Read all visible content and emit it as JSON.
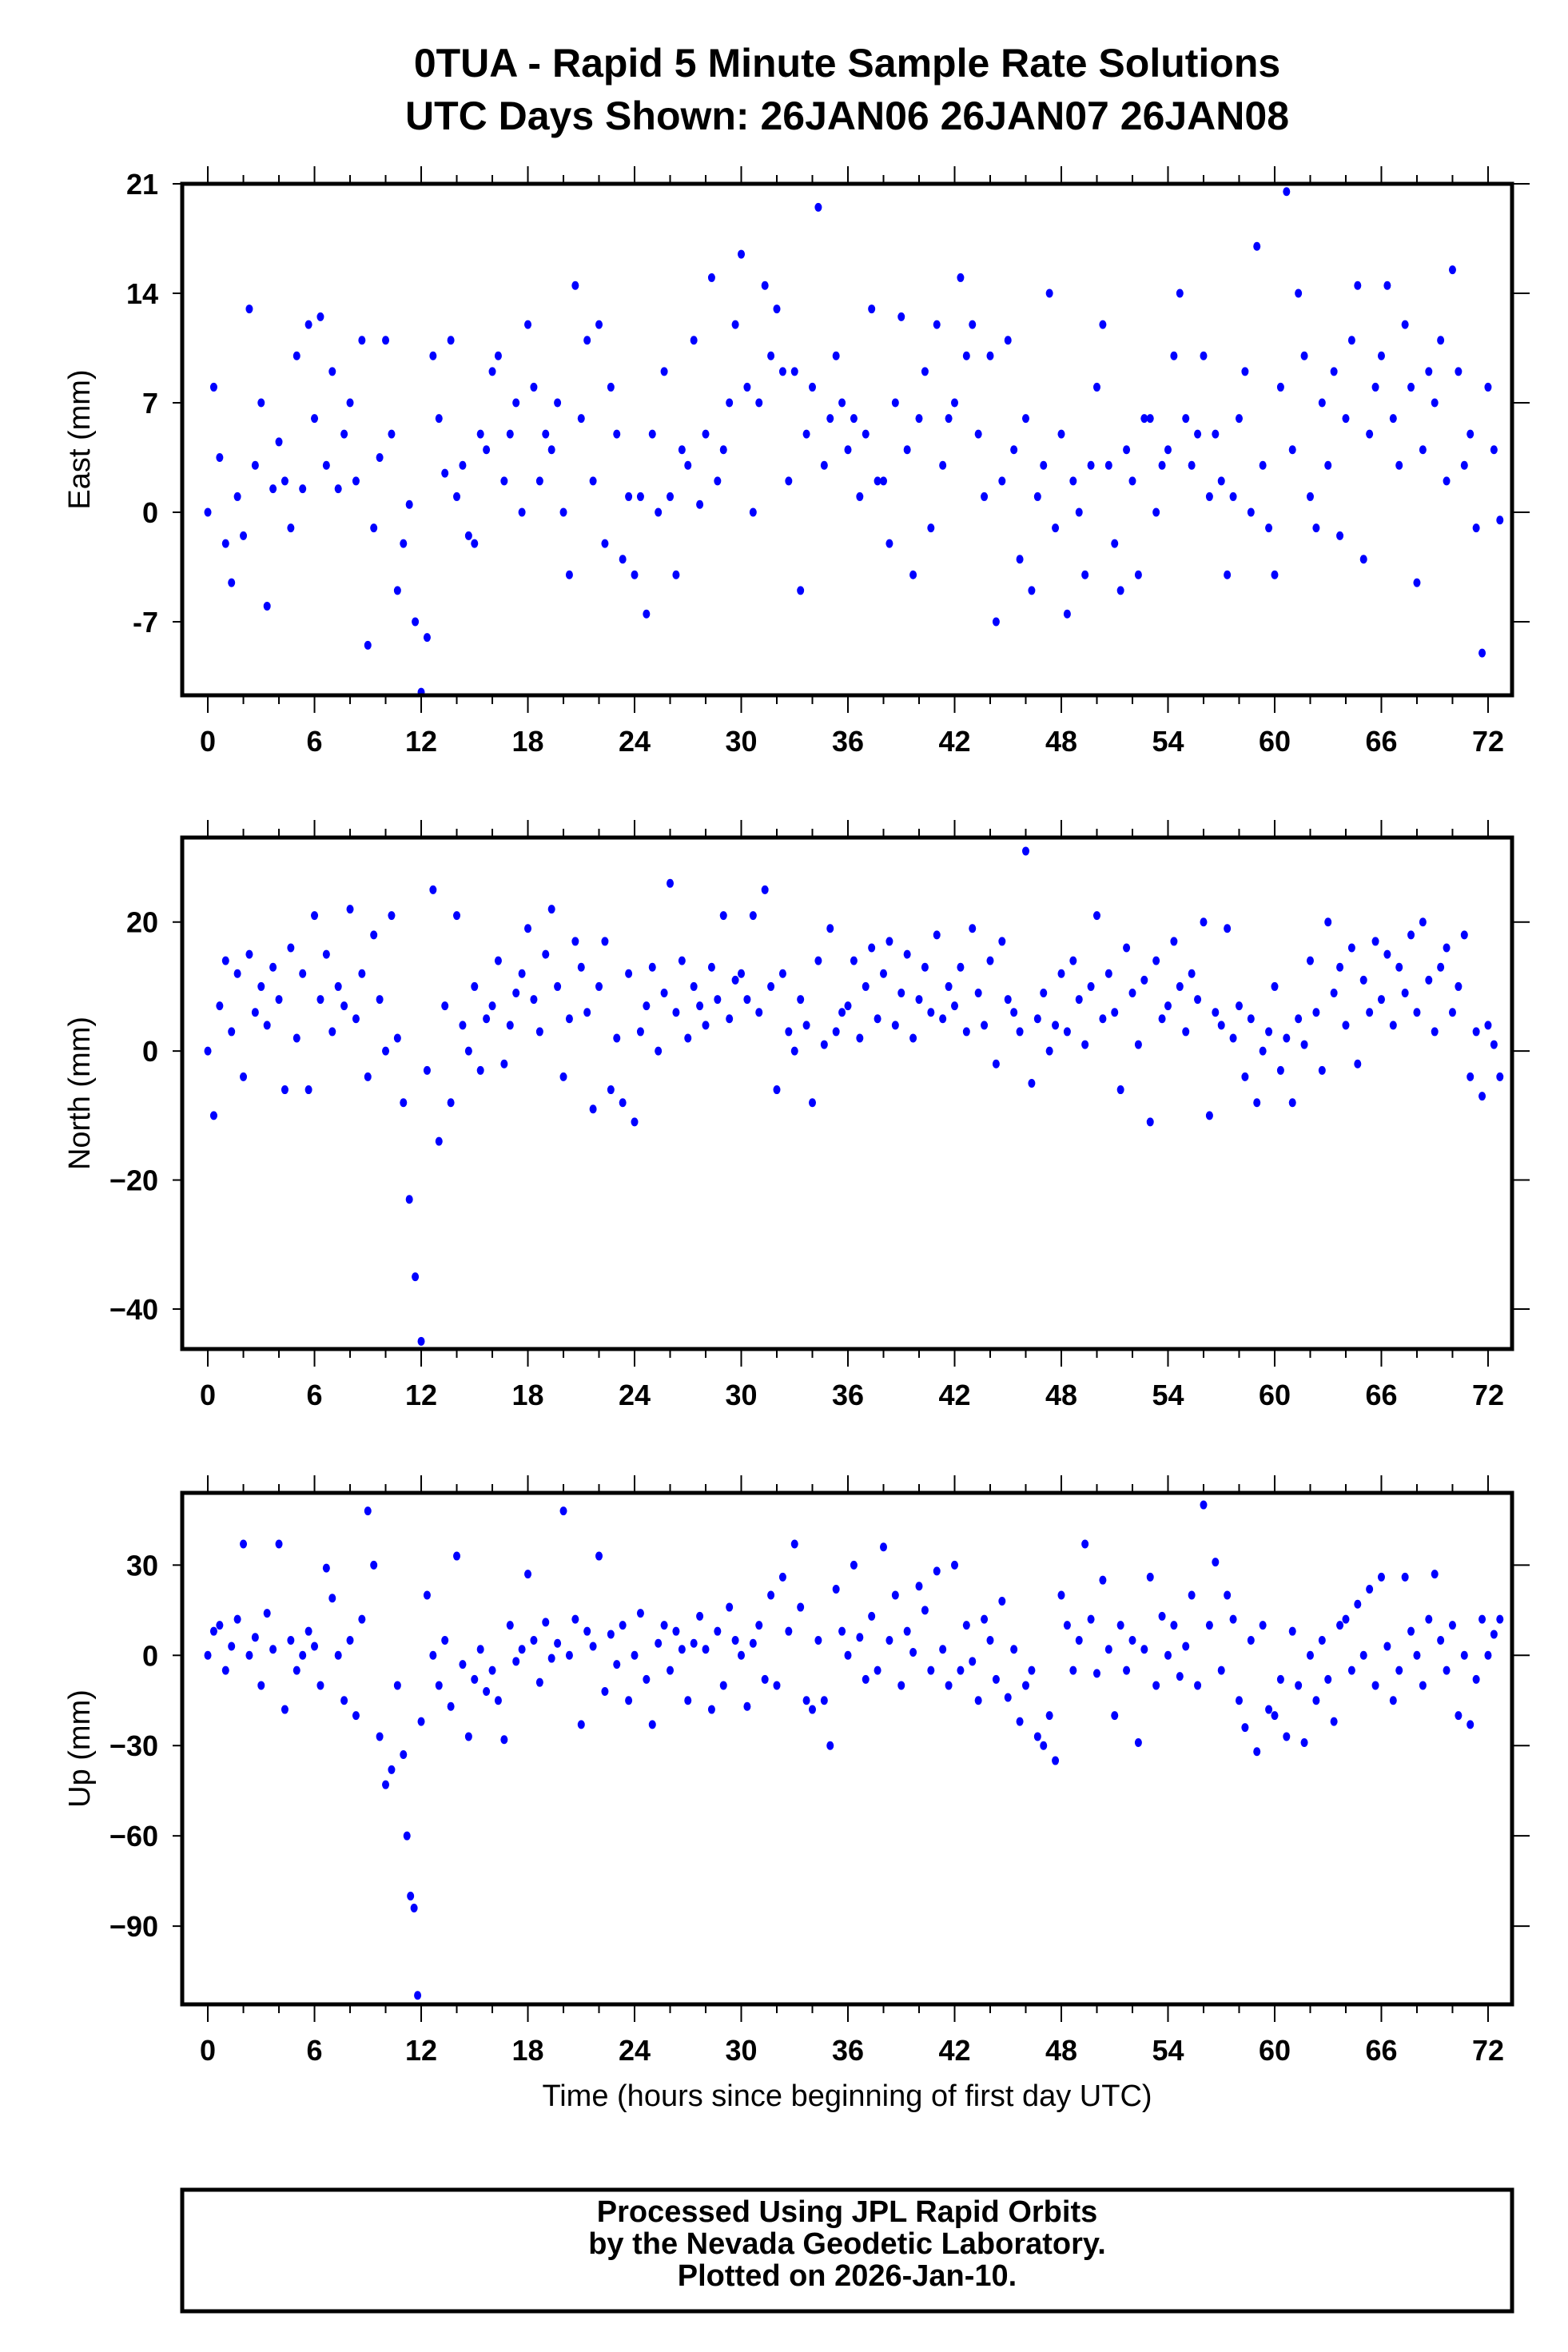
{
  "chart_data": {
    "type": "scatter",
    "title": "0TUA - Rapid 5 Minute Sample Rate Solutions",
    "subtitle": "UTC Days Shown:  26JAN06 26JAN07 26JAN08",
    "xlabel": "Time (hours since beginning of first day UTC)",
    "xlim": [
      -1.44,
      73.35
    ],
    "xticks": [
      "0",
      "6",
      "12",
      "18",
      "24",
      "30",
      "36",
      "42",
      "48",
      "54",
      "60",
      "66",
      "72"
    ],
    "marker_color": "#0000ff",
    "grid": false,
    "panels": [
      {
        "name": "East",
        "ylabel": "East (mm)",
        "ylim": [
          -11.7,
          21
        ],
        "yticks": [
          "21",
          "14",
          "7",
          "0",
          "-7"
        ],
        "ytick_values": [
          21,
          14,
          7,
          0,
          -7
        ],
        "values_by_hour": [
          [
            0,
            8,
            3.5
          ],
          [
            -2,
            -4.5,
            1
          ],
          [
            -1.5,
            13,
            3
          ],
          [
            7,
            -6,
            1.5
          ],
          [
            4.5,
            2,
            -1
          ],
          [
            10,
            1.5,
            12
          ],
          [
            6,
            12.5,
            3
          ],
          [
            9,
            1.5,
            5
          ],
          [
            7,
            2,
            11
          ],
          [
            -8.5,
            -1,
            3.5
          ],
          [
            11,
            5,
            -5
          ],
          [
            -2,
            0.5,
            -7
          ],
          [
            -11.5,
            -8,
            10
          ],
          [
            6,
            2.5,
            11
          ],
          [
            1,
            3,
            -1.5
          ],
          [
            -2,
            5,
            4
          ],
          [
            9,
            10,
            2
          ],
          [
            5,
            7,
            0
          ],
          [
            12,
            8,
            2
          ],
          [
            5,
            4,
            7
          ],
          [
            0,
            -4,
            14.5
          ],
          [
            6,
            11,
            2
          ],
          [
            12,
            -2,
            8
          ],
          [
            5,
            -3,
            1
          ],
          [
            -4,
            1,
            -6.5
          ],
          [
            5,
            0,
            9
          ],
          [
            1,
            -4,
            4
          ],
          [
            3,
            11,
            0.5
          ],
          [
            5,
            15,
            2
          ],
          [
            4,
            7,
            12
          ],
          [
            16.5,
            8,
            0
          ],
          [
            7,
            14.5,
            10
          ],
          [
            13,
            9,
            2
          ],
          [
            9,
            -5,
            5
          ],
          [
            8,
            19.5,
            3
          ],
          [
            6,
            10,
            7
          ],
          [
            4,
            6,
            1
          ],
          [
            5,
            13,
            2
          ],
          [
            2,
            -2,
            7
          ],
          [
            12.5,
            4,
            -4
          ],
          [
            6,
            9,
            -1
          ],
          [
            12,
            3,
            6
          ],
          [
            7,
            15,
            10
          ],
          [
            12,
            5,
            1
          ],
          [
            10,
            -7,
            2
          ],
          [
            11,
            4,
            -3
          ],
          [
            6,
            -5,
            1
          ],
          [
            3,
            14,
            -1
          ],
          [
            5,
            -6.5,
            2
          ],
          [
            0,
            -4,
            3
          ],
          [
            8,
            12,
            3
          ],
          [
            -2,
            -5,
            4
          ],
          [
            2,
            -4,
            6
          ],
          [
            6,
            0,
            3
          ],
          [
            4,
            10,
            14
          ],
          [
            6,
            3,
            5
          ],
          [
            10,
            1,
            5
          ],
          [
            2,
            -4,
            1
          ],
          [
            6,
            9,
            0
          ],
          [
            17,
            3,
            -1
          ],
          [
            -4,
            8,
            20.5
          ],
          [
            4,
            14,
            10
          ],
          [
            1,
            -1,
            7
          ],
          [
            3,
            9,
            -1.5
          ],
          [
            6,
            11,
            14.5
          ],
          [
            -3,
            5,
            8
          ],
          [
            10,
            14.5,
            6
          ],
          [
            3,
            12,
            8
          ],
          [
            -4.5,
            4,
            9
          ],
          [
            7,
            11,
            2
          ],
          [
            15.5,
            9,
            3
          ],
          [
            5,
            -1,
            -9
          ],
          [
            8,
            4,
            -0.5
          ]
        ]
      },
      {
        "name": "North",
        "ylabel": "North (mm)",
        "ylim": [
          -46.2,
          33.1
        ],
        "yticks": [
          "20",
          "0",
          "−20",
          "−40"
        ],
        "ytick_values": [
          20,
          0,
          -20,
          -40
        ],
        "values_by_hour": [
          [
            0,
            -10,
            7
          ],
          [
            14,
            3,
            12
          ],
          [
            -4,
            15,
            6
          ],
          [
            10,
            4,
            13
          ],
          [
            8,
            -6,
            16
          ],
          [
            2,
            12,
            -6
          ],
          [
            21,
            8,
            15
          ],
          [
            3,
            10,
            7
          ],
          [
            22,
            5,
            12
          ],
          [
            -4,
            18,
            8
          ],
          [
            0,
            21,
            2
          ],
          [
            -8,
            -23,
            -35
          ],
          [
            -45,
            -3,
            25
          ],
          [
            -14,
            7,
            -8
          ],
          [
            21,
            4,
            0
          ],
          [
            10,
            -3,
            5
          ],
          [
            7,
            14,
            -2
          ],
          [
            4,
            9,
            12
          ],
          [
            19,
            8,
            3
          ],
          [
            15,
            22,
            10
          ],
          [
            -4,
            5,
            17
          ],
          [
            13,
            6,
            -9
          ],
          [
            10,
            17,
            -6
          ],
          [
            2,
            -8,
            12
          ],
          [
            -11,
            3,
            7
          ],
          [
            13,
            0,
            9
          ],
          [
            26,
            6,
            14
          ],
          [
            2,
            10,
            7
          ],
          [
            4,
            13,
            8
          ],
          [
            21,
            5,
            11
          ],
          [
            12,
            8,
            21
          ],
          [
            6,
            25,
            10
          ],
          [
            -6,
            12,
            3
          ],
          [
            0,
            8,
            4
          ],
          [
            -8,
            14,
            1
          ],
          [
            19,
            3,
            6
          ],
          [
            7,
            14,
            2
          ],
          [
            10,
            16,
            5
          ],
          [
            12,
            17,
            4
          ],
          [
            9,
            15,
            2
          ],
          [
            8,
            13,
            6
          ],
          [
            18,
            5,
            10
          ],
          [
            7,
            13,
            3
          ],
          [
            19,
            9,
            4
          ],
          [
            14,
            -2,
            17
          ],
          [
            8,
            6,
            3
          ],
          [
            31,
            -5,
            5
          ],
          [
            9,
            0,
            4
          ],
          [
            12,
            3,
            14
          ],
          [
            8,
            1,
            10
          ],
          [
            21,
            5,
            12
          ],
          [
            6,
            -6,
            16
          ],
          [
            9,
            1,
            11
          ],
          [
            -11,
            14,
            5
          ],
          [
            7,
            17,
            10
          ],
          [
            3,
            12,
            8
          ],
          [
            20,
            -10,
            6
          ],
          [
            4,
            19,
            2
          ],
          [
            7,
            -4,
            5
          ],
          [
            -8,
            0,
            3
          ],
          [
            10,
            -3,
            2
          ],
          [
            -8,
            5,
            1
          ],
          [
            14,
            6,
            -3
          ],
          [
            20,
            9,
            13
          ],
          [
            4,
            16,
            -2
          ],
          [
            11,
            6,
            17
          ],
          [
            8,
            15,
            4
          ],
          [
            13,
            9,
            18
          ],
          [
            6,
            20,
            11
          ],
          [
            3,
            13,
            16
          ],
          [
            6,
            10,
            18
          ],
          [
            -4,
            3,
            -7
          ],
          [
            4,
            1,
            -4
          ]
        ]
      },
      {
        "name": "Up",
        "ylabel": "Up (mm)",
        "ylim": [
          -116,
          54
        ],
        "yticks": [
          "30",
          "0",
          "−30",
          "−60",
          "−90"
        ],
        "ytick_values": [
          30,
          0,
          -30,
          -60,
          -90
        ],
        "values_by_hour": [
          [
            0,
            8,
            10
          ],
          [
            -5,
            3,
            12
          ],
          [
            37,
            0,
            6
          ],
          [
            -10,
            14,
            2
          ],
          [
            37,
            -18,
            5
          ],
          [
            -5,
            0,
            8
          ],
          [
            3,
            -10,
            29
          ],
          [
            19,
            0,
            -15
          ],
          [
            5,
            -20,
            12
          ],
          [
            48,
            30,
            -27
          ],
          [
            -43,
            -38,
            -10
          ],
          [
            -33,
            -60,
            -80,
            -84,
            -113
          ],
          [
            -22,
            20,
            0
          ],
          [
            -10,
            5,
            -17
          ],
          [
            33,
            -3,
            -27
          ],
          [
            -8,
            2,
            -12
          ],
          [
            -5,
            -15,
            -28
          ],
          [
            10,
            -2,
            2
          ],
          [
            27,
            5,
            -9
          ],
          [
            11,
            -1,
            4
          ],
          [
            48,
            0,
            12
          ],
          [
            -23,
            8,
            3
          ],
          [
            33,
            -12,
            7
          ],
          [
            -3,
            10,
            -15
          ],
          [
            0,
            14,
            -8
          ],
          [
            -23,
            4,
            10
          ],
          [
            -5,
            8,
            2
          ],
          [
            -15,
            4,
            13
          ],
          [
            2,
            -18,
            8
          ],
          [
            -10,
            16,
            5
          ],
          [
            0,
            -17,
            4
          ],
          [
            10,
            -8,
            20
          ],
          [
            -10,
            26,
            8
          ],
          [
            37,
            16,
            -15
          ],
          [
            -18,
            5,
            -15
          ],
          [
            -30,
            22,
            8
          ],
          [
            0,
            30,
            6
          ],
          [
            -8,
            13,
            -5
          ],
          [
            36,
            5,
            20
          ],
          [
            -10,
            8,
            1
          ],
          [
            23,
            15,
            -5
          ],
          [
            28,
            2,
            -10
          ],
          [
            30,
            -5,
            10
          ],
          [
            -2,
            -15,
            12
          ],
          [
            5,
            -8,
            18
          ],
          [
            -14,
            2,
            -22
          ],
          [
            -10,
            -5,
            -27
          ],
          [
            -30,
            -20,
            -35
          ],
          [
            20,
            10,
            -5
          ],
          [
            5,
            37,
            12
          ],
          [
            -6,
            25,
            2
          ],
          [
            -20,
            10,
            -5
          ],
          [
            5,
            -29,
            2
          ],
          [
            26,
            -10,
            13
          ],
          [
            0,
            10,
            -7
          ],
          [
            3,
            20,
            -10
          ],
          [
            50,
            10,
            31
          ],
          [
            -5,
            20,
            12
          ],
          [
            -15,
            -24,
            5
          ],
          [
            -32,
            10,
            -18
          ],
          [
            -20,
            -8,
            -27
          ],
          [
            8,
            -10,
            -29
          ],
          [
            0,
            -15,
            5
          ],
          [
            -8,
            -22,
            10
          ],
          [
            12,
            -5,
            17
          ],
          [
            0,
            22,
            -10
          ],
          [
            26,
            3,
            -15
          ],
          [
            -5,
            26,
            8
          ],
          [
            0,
            -10,
            12
          ],
          [
            27,
            5,
            -5
          ],
          [
            10,
            -20,
            0
          ],
          [
            -23,
            -8,
            12
          ],
          [
            0,
            7,
            12
          ]
        ]
      }
    ]
  },
  "footer": {
    "line1": "Processed Using JPL Rapid Orbits",
    "line2": "by the Nevada Geodetic Laboratory.",
    "line3": "Plotted on 2026-Jan-10."
  }
}
